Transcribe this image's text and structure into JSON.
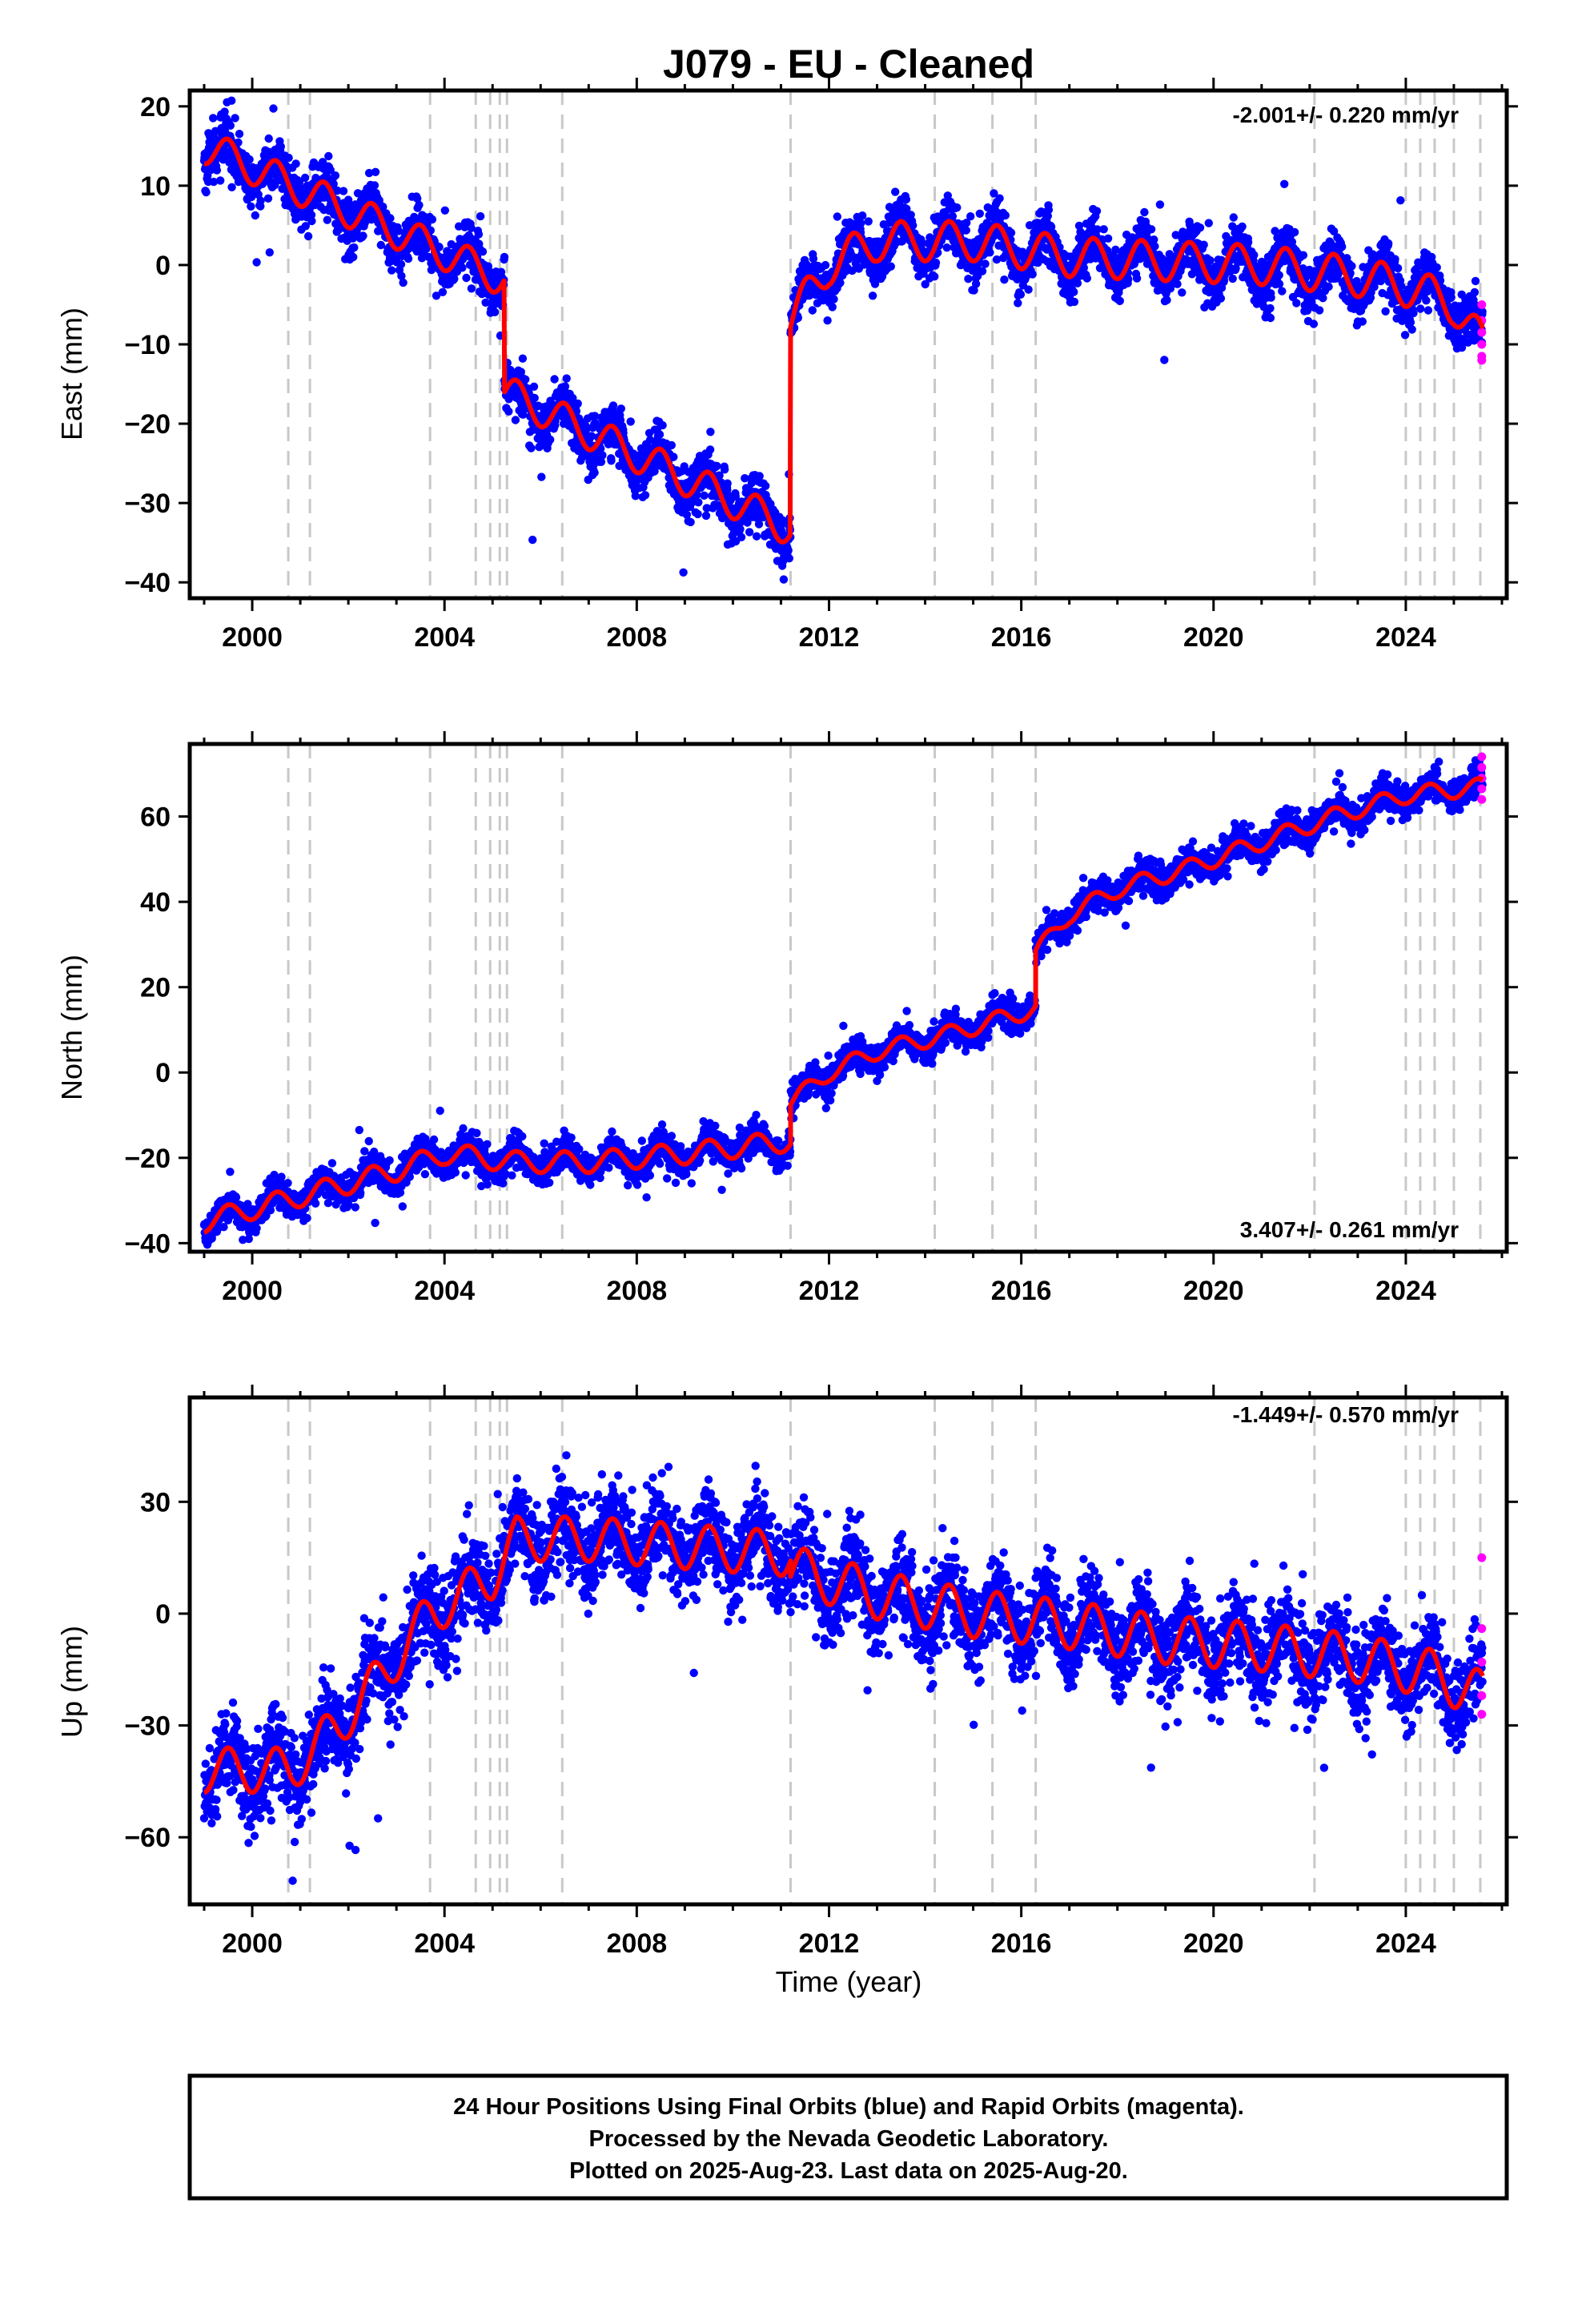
{
  "title": "J079  - EU - Cleaned",
  "colors": {
    "final": "#0000ff",
    "rapid": "#ff00ff",
    "model": "#ff0000",
    "event": "#c8c8c8"
  },
  "footer": {
    "line1": "24 Hour Positions Using Final Orbits (blue) and Rapid Orbits (magenta).",
    "line2": "Processed by the Nevada Geodetic Laboratory.",
    "line3": "Plotted on 2025-Aug-23. Last data on 2025-Aug-20."
  },
  "chart_data": [
    {
      "type": "scatter",
      "ylabel": "East (mm)",
      "rate": "-2.001+/- 0.220 mm/yr",
      "rate_position": "top-right",
      "xlim": [
        1998.7,
        2026.1
      ],
      "ylim": [
        -42,
        22
      ],
      "xticks": [
        2000,
        2004,
        2008,
        2012,
        2016,
        2020,
        2024
      ],
      "yticks": [
        20,
        10,
        0,
        -10,
        -20,
        -30,
        -40
      ],
      "ytick_labels": [
        "20",
        "10",
        "0",
        "−10",
        "−20",
        "−30",
        "−40"
      ],
      "event_lines": [
        2000.75,
        2001.2,
        2003.7,
        2004.65,
        2004.95,
        2005.15,
        2005.3,
        2006.45,
        2011.2,
        2014.2,
        2015.4,
        2016.3,
        2022.1,
        2024.0,
        2024.3,
        2024.6,
        2025.0,
        2025.55
      ],
      "segments": [
        {
          "start": 1999.0,
          "end": 2005.25,
          "v0": 15.0,
          "rate": -2.7,
          "amp": 2.2,
          "noise": 1.6
        },
        {
          "start": 2005.25,
          "end": 2011.2,
          "v0": -16.0,
          "rate": -2.9,
          "amp": 2.2,
          "noise": 1.6
        },
        {
          "start": 2011.2,
          "end": 2025.6,
          "v0": -7.0,
          "rate": 0.0,
          "amp": 2.5,
          "noise": 1.6,
          "knots": [
            [
              2011.2,
              -7
            ],
            [
              2012,
              0
            ],
            [
              2013,
              3
            ],
            [
              2015,
              3
            ],
            [
              2017,
              1
            ],
            [
              2019,
              0.5
            ],
            [
              2021,
              0
            ],
            [
              2023,
              -1.5
            ],
            [
              2024.2,
              -3
            ],
            [
              2025,
              -5
            ],
            [
              2025.6,
              -10
            ]
          ]
        }
      ],
      "rapid_points": [
        [
          2025.58,
          -5
        ],
        [
          2025.58,
          -7
        ],
        [
          2025.58,
          -8.5
        ],
        [
          2025.58,
          -10
        ],
        [
          2025.58,
          -11.5
        ],
        [
          2025.58,
          -12
        ]
      ]
    },
    {
      "type": "scatter",
      "ylabel": "North (mm)",
      "rate": "3.407+/- 0.261 mm/yr",
      "rate_position": "bottom-right",
      "xlim": [
        1998.7,
        2026.1
      ],
      "ylim": [
        -42,
        77
      ],
      "xticks": [
        2000,
        2004,
        2008,
        2012,
        2016,
        2020,
        2024
      ],
      "yticks": [
        60,
        40,
        20,
        0,
        -20,
        -40
      ],
      "ytick_labels": [
        "60",
        "40",
        "20",
        "0",
        "−20",
        "−40"
      ],
      "event_lines": [
        2000.75,
        2001.2,
        2003.7,
        2004.65,
        2004.95,
        2005.15,
        2005.3,
        2006.45,
        2011.2,
        2014.2,
        2015.4,
        2016.3,
        2022.1,
        2024.0,
        2024.3,
        2024.6,
        2025.0,
        2025.55
      ],
      "segments": [
        {
          "start": 1999.0,
          "end": 2011.2,
          "v0": -35.0,
          "rate": 0.0,
          "amp": 2.5,
          "noise": 1.8,
          "knots": [
            [
              1999,
              -35
            ],
            [
              2001,
              -29
            ],
            [
              2003,
              -23
            ],
            [
              2004,
              -19
            ],
            [
              2005.5,
              -21
            ],
            [
              2007,
              -21
            ],
            [
              2009,
              -19
            ],
            [
              2011.2,
              -16
            ]
          ]
        },
        {
          "start": 2011.2,
          "end": 2016.3,
          "v0": -7.0,
          "rate": 0.0,
          "amp": 2.0,
          "noise": 1.8,
          "knots": [
            [
              2011.2,
              -7
            ],
            [
              2012,
              0
            ],
            [
              2013,
              5
            ],
            [
              2014.5,
              9
            ],
            [
              2016.3,
              15
            ]
          ]
        },
        {
          "start": 2016.3,
          "end": 2025.6,
          "v0": 28.0,
          "rate": 0.0,
          "amp": 2.0,
          "noise": 1.8,
          "knots": [
            [
              2016.3,
              28
            ],
            [
              2017,
              37
            ],
            [
              2018,
              43
            ],
            [
              2019.5,
              48
            ],
            [
              2021,
              54
            ],
            [
              2022.5,
              60
            ],
            [
              2024,
              65
            ],
            [
              2025.6,
              67
            ]
          ]
        }
      ],
      "rapid_points": [
        [
          2025.58,
          64
        ],
        [
          2025.58,
          66.5
        ],
        [
          2025.58,
          69
        ],
        [
          2025.58,
          71.5
        ],
        [
          2025.58,
          74
        ]
      ]
    },
    {
      "type": "scatter",
      "ylabel": "Up (mm)",
      "xlabel": "Time (year)",
      "rate": "-1.449+/- 0.570 mm/yr",
      "rate_position": "top-right",
      "xlim": [
        1998.7,
        2026.1
      ],
      "ylim": [
        -78,
        58
      ],
      "xticks": [
        2000,
        2004,
        2008,
        2012,
        2016,
        2020,
        2024
      ],
      "yticks": [
        30,
        0,
        -30,
        -60
      ],
      "ytick_labels": [
        "30",
        "0",
        "−30",
        "−60"
      ],
      "event_lines": [
        2000.75,
        2001.2,
        2003.7,
        2004.65,
        2004.95,
        2005.15,
        2005.3,
        2006.45,
        2011.2,
        2014.2,
        2015.4,
        2016.3,
        2022.1,
        2024.0,
        2024.3,
        2024.6,
        2025.0,
        2025.55
      ],
      "segments": [
        {
          "start": 1999.0,
          "end": 2011.2,
          "v0": -42.0,
          "rate": 0.0,
          "amp": 6.0,
          "noise": 6.0,
          "knots": [
            [
              1999,
              -42
            ],
            [
              2000.8,
              -42
            ],
            [
              2001.8,
              -30
            ],
            [
              2002.8,
              -15
            ],
            [
              2003.7,
              0
            ],
            [
              2005,
              10
            ],
            [
              2005.5,
              20
            ],
            [
              2007,
              20
            ],
            [
              2009,
              18
            ],
            [
              2011.2,
              16
            ]
          ]
        },
        {
          "start": 2011.2,
          "end": 2025.6,
          "v0": 12.0,
          "rate": 0.0,
          "amp": 6.5,
          "noise": 6.0,
          "knots": [
            [
              2011.2,
              12
            ],
            [
              2013,
              5
            ],
            [
              2015,
              0
            ],
            [
              2017,
              -3
            ],
            [
              2019,
              -7
            ],
            [
              2021,
              -9
            ],
            [
              2023,
              -12
            ],
            [
              2024.5,
              -16
            ],
            [
              2025.6,
              -22
            ]
          ]
        }
      ],
      "rapid_points": [
        [
          2025.58,
          15
        ],
        [
          2025.58,
          -4
        ],
        [
          2025.58,
          -13
        ],
        [
          2025.58,
          -22
        ],
        [
          2025.58,
          -27
        ]
      ]
    }
  ]
}
